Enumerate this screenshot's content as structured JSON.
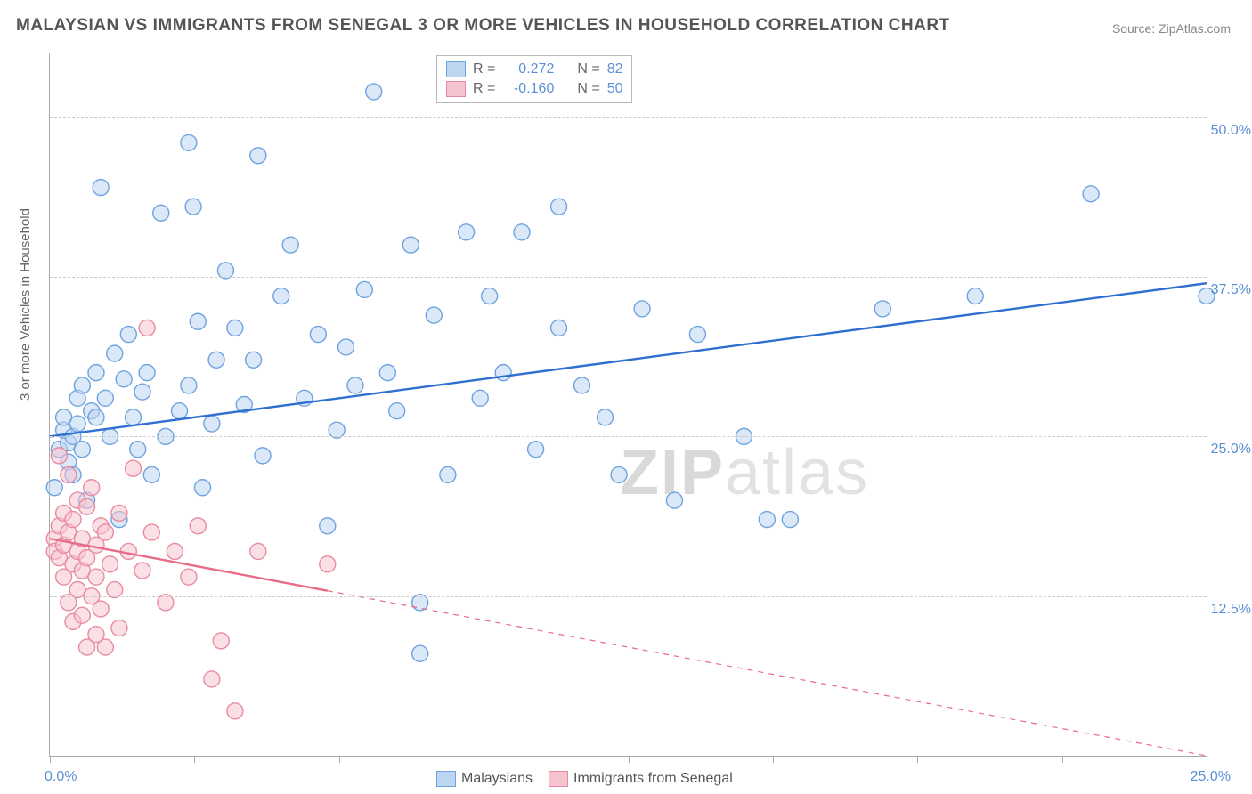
{
  "title": "MALAYSIAN VS IMMIGRANTS FROM SENEGAL 3 OR MORE VEHICLES IN HOUSEHOLD CORRELATION CHART",
  "source": "Source: ZipAtlas.com",
  "watermark_a": "ZIP",
  "watermark_b": "atlas",
  "chart": {
    "type": "scatter",
    "ylabel": "3 or more Vehicles in Household",
    "xlim": [
      0,
      25
    ],
    "ylim": [
      0,
      55
    ],
    "x_ticks_at": [
      0,
      3.125,
      6.25,
      9.375,
      12.5,
      15.625,
      18.75,
      21.875,
      25
    ],
    "y_gridlines_at": [
      12.5,
      25,
      37.5,
      50
    ],
    "y_tick_labels": [
      {
        "v": 12.5,
        "label": "12.5%"
      },
      {
        "v": 25,
        "label": "25.0%"
      },
      {
        "v": 37.5,
        "label": "37.5%"
      },
      {
        "v": 50,
        "label": "50.0%"
      }
    ],
    "x_origin_label": "0.0%",
    "x_end_label": "25.0%",
    "background_color": "#ffffff",
    "grid_color": "#cccccc",
    "axis_color": "#aaaaaa",
    "tick_label_color": "#5b8fd6",
    "marker_radius": 9,
    "marker_stroke_width": 1.4,
    "series": [
      {
        "name": "Malaysians",
        "fill": "#bcd6f2",
        "stroke": "#6fa3e0",
        "fill_opacity": 0.55,
        "line_color": "#2e6fd1",
        "line_width": 2.4,
        "R": "0.272",
        "N": "82",
        "trend": {
          "x0": 0,
          "y0": 25,
          "x1": 25,
          "y1": 37,
          "solid_until_x": 25
        },
        "points": [
          [
            0.1,
            21
          ],
          [
            0.2,
            24
          ],
          [
            0.3,
            25.5
          ],
          [
            0.3,
            26.5
          ],
          [
            0.4,
            23
          ],
          [
            0.4,
            24.5
          ],
          [
            0.5,
            25
          ],
          [
            0.5,
            22
          ],
          [
            0.6,
            26
          ],
          [
            0.6,
            28
          ],
          [
            0.7,
            24
          ],
          [
            0.7,
            29
          ],
          [
            0.8,
            20
          ],
          [
            0.9,
            27
          ],
          [
            1.0,
            30
          ],
          [
            1.0,
            26.5
          ],
          [
            1.1,
            44.5
          ],
          [
            1.2,
            28
          ],
          [
            1.3,
            25
          ],
          [
            1.4,
            31.5
          ],
          [
            1.5,
            18.5
          ],
          [
            1.6,
            29.5
          ],
          [
            1.7,
            33
          ],
          [
            1.8,
            26.5
          ],
          [
            1.9,
            24
          ],
          [
            2.0,
            28.5
          ],
          [
            2.1,
            30
          ],
          [
            2.2,
            22
          ],
          [
            2.4,
            42.5
          ],
          [
            2.5,
            25
          ],
          [
            2.8,
            27
          ],
          [
            3.0,
            29
          ],
          [
            3.0,
            48
          ],
          [
            3.1,
            43
          ],
          [
            3.2,
            34
          ],
          [
            3.3,
            21
          ],
          [
            3.5,
            26
          ],
          [
            3.6,
            31
          ],
          [
            3.8,
            38
          ],
          [
            4.0,
            33.5
          ],
          [
            4.2,
            27.5
          ],
          [
            4.4,
            31
          ],
          [
            4.5,
            47
          ],
          [
            4.6,
            23.5
          ],
          [
            5.0,
            36
          ],
          [
            5.2,
            40
          ],
          [
            5.5,
            28
          ],
          [
            5.8,
            33
          ],
          [
            6.0,
            18
          ],
          [
            6.2,
            25.5
          ],
          [
            6.4,
            32
          ],
          [
            6.6,
            29
          ],
          [
            6.8,
            36.5
          ],
          [
            7.0,
            52
          ],
          [
            7.3,
            30
          ],
          [
            7.5,
            27
          ],
          [
            7.8,
            40
          ],
          [
            8.0,
            8
          ],
          [
            8.0,
            12
          ],
          [
            8.3,
            34.5
          ],
          [
            8.6,
            22
          ],
          [
            9.0,
            41
          ],
          [
            9.3,
            28
          ],
          [
            9.5,
            36
          ],
          [
            9.8,
            30
          ],
          [
            10.2,
            41
          ],
          [
            10.5,
            24
          ],
          [
            11.0,
            33.5
          ],
          [
            11.0,
            43
          ],
          [
            11.5,
            29
          ],
          [
            12.0,
            26.5
          ],
          [
            12.3,
            22
          ],
          [
            12.8,
            35
          ],
          [
            13.5,
            20
          ],
          [
            14.0,
            33
          ],
          [
            15.0,
            25
          ],
          [
            15.5,
            18.5
          ],
          [
            16.0,
            18.5
          ],
          [
            18.0,
            35
          ],
          [
            20.0,
            36
          ],
          [
            22.5,
            44
          ],
          [
            25.0,
            36
          ]
        ]
      },
      {
        "name": "Immigrants from Senegal",
        "fill": "#f6c4cf",
        "stroke": "#e88ba1",
        "fill_opacity": 0.55,
        "line_color": "#e86b88",
        "line_width": 2.4,
        "R": "-0.160",
        "N": "50",
        "trend": {
          "x0": 0,
          "y0": 17,
          "x1": 25,
          "y1": 0,
          "solid_until_x": 6
        },
        "points": [
          [
            0.1,
            17
          ],
          [
            0.1,
            16
          ],
          [
            0.2,
            18
          ],
          [
            0.2,
            15.5
          ],
          [
            0.2,
            23.5
          ],
          [
            0.3,
            14
          ],
          [
            0.3,
            19
          ],
          [
            0.3,
            16.5
          ],
          [
            0.4,
            17.5
          ],
          [
            0.4,
            12
          ],
          [
            0.4,
            22
          ],
          [
            0.5,
            15
          ],
          [
            0.5,
            18.5
          ],
          [
            0.5,
            10.5
          ],
          [
            0.6,
            20
          ],
          [
            0.6,
            13
          ],
          [
            0.6,
            16
          ],
          [
            0.7,
            14.5
          ],
          [
            0.7,
            17
          ],
          [
            0.7,
            11
          ],
          [
            0.8,
            19.5
          ],
          [
            0.8,
            8.5
          ],
          [
            0.8,
            15.5
          ],
          [
            0.9,
            12.5
          ],
          [
            0.9,
            21
          ],
          [
            1.0,
            16.5
          ],
          [
            1.0,
            14
          ],
          [
            1.0,
            9.5
          ],
          [
            1.1,
            18
          ],
          [
            1.1,
            11.5
          ],
          [
            1.2,
            8.5
          ],
          [
            1.2,
            17.5
          ],
          [
            1.3,
            15
          ],
          [
            1.4,
            13
          ],
          [
            1.5,
            19
          ],
          [
            1.5,
            10
          ],
          [
            1.7,
            16
          ],
          [
            1.8,
            22.5
          ],
          [
            2.0,
            14.5
          ],
          [
            2.1,
            33.5
          ],
          [
            2.2,
            17.5
          ],
          [
            2.5,
            12
          ],
          [
            2.7,
            16
          ],
          [
            3.0,
            14
          ],
          [
            3.2,
            18
          ],
          [
            3.5,
            6
          ],
          [
            3.7,
            9
          ],
          [
            4.0,
            3.5
          ],
          [
            4.5,
            16
          ],
          [
            6.0,
            15
          ]
        ]
      }
    ],
    "legend_top": {
      "rows": [
        {
          "swatch_fill": "#bcd6f2",
          "swatch_stroke": "#6fa3e0",
          "r_label": "R =",
          "r_val": "0.272",
          "n_label": "N =",
          "n_val": "82"
        },
        {
          "swatch_fill": "#f6c4cf",
          "swatch_stroke": "#e88ba1",
          "r_label": "R =",
          "r_val": "-0.160",
          "n_label": "N =",
          "n_val": "50"
        }
      ],
      "r_color": "#5b8fd6",
      "n_color": "#5b8fd6",
      "label_color": "#666666"
    },
    "legend_bottom": [
      {
        "swatch_fill": "#bcd6f2",
        "swatch_stroke": "#6fa3e0",
        "label": "Malaysians"
      },
      {
        "swatch_fill": "#f6c4cf",
        "swatch_stroke": "#e88ba1",
        "label": "Immigrants from Senegal"
      }
    ]
  }
}
